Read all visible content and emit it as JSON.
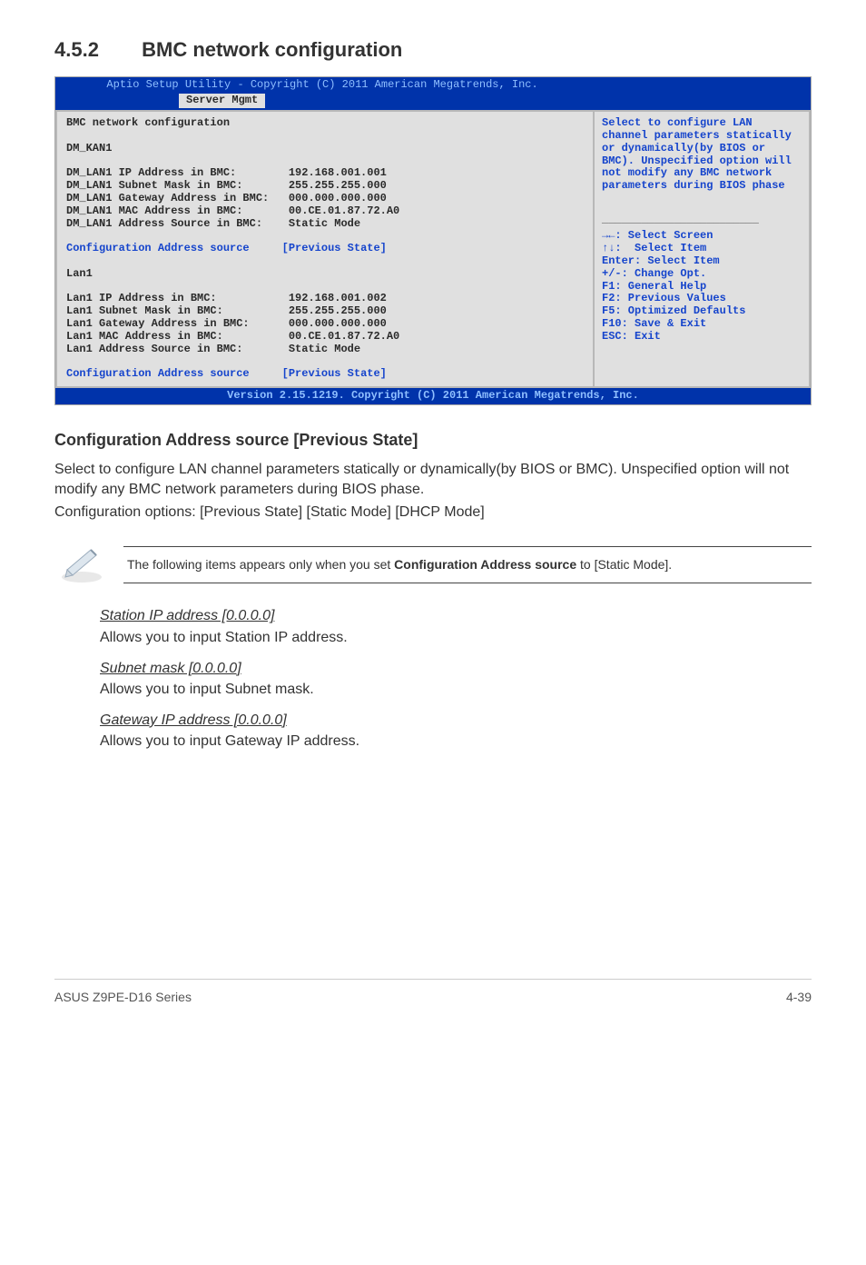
{
  "section": {
    "number": "4.5.2",
    "title": "BMC network configuration"
  },
  "bios": {
    "titlebar": "Aptio Setup Utility - Copyright (C) 2011 American Megatrends, Inc.",
    "active_tab": "Server Mgmt",
    "left_heading": "BMC network configuration",
    "left_group1": "DM_KAN1",
    "left_rows_g1": [
      [
        "DM_LAN1 IP Address in BMC:",
        "192.168.001.001"
      ],
      [
        "DM_LAN1 Subnet Mask in BMC:",
        "255.255.255.000"
      ],
      [
        "DM_LAN1 Gateway Address in BMC:",
        "000.000.000.000"
      ],
      [
        "DM_LAN1 MAC Address in BMC:",
        "00.CE.01.87.72.A0"
      ],
      [
        "DM_LAN1 Address Source in BMC:",
        "Static Mode"
      ]
    ],
    "left_cfg1_label": "Configuration Address source",
    "left_cfg1_val": "[Previous State]",
    "left_group2": "Lan1",
    "left_rows_g2": [
      [
        "Lan1 IP Address in BMC:",
        "192.168.001.002"
      ],
      [
        "Lan1 Subnet Mask in BMC:",
        "255.255.255.000"
      ],
      [
        "Lan1 Gateway Address in BMC:",
        "000.000.000.000"
      ],
      [
        "Lan1 MAC Address in BMC:",
        "00.CE.01.87.72.A0"
      ],
      [
        "Lan1 Address Source in BMC:",
        "Static Mode"
      ]
    ],
    "left_cfg2_label": "Configuration Address source",
    "left_cfg2_val": "[Previous State]",
    "help_text": "Select to configure LAN channel parameters statically or dynamically(by BIOS or BMC). Unspecified option will not modify any BMC network parameters during BIOS phase",
    "nav": [
      "→←: Select Screen",
      "↑↓:  Select Item",
      "Enter: Select Item",
      "+/-: Change Opt.",
      "F1: General Help",
      "F2: Previous Values",
      "F5: Optimized Defaults",
      "F10: Save & Exit",
      "ESC: Exit"
    ],
    "footer": "Version 2.15.1219. Copyright (C) 2011 American Megatrends, Inc."
  },
  "subhead": "Configuration Address source [Previous State]",
  "para1": "Select to configure LAN channel parameters statically or dynamically(by BIOS or BMC). Unspecified option will not modify any BMC network parameters during BIOS phase.",
  "cfgopts": "Configuration options: [Previous State] [Static Mode] [DHCP Mode]",
  "note_pre": "The following items appears only when you set ",
  "note_bold": "Configuration Address source",
  "note_post": " to [Static Mode].",
  "items": [
    {
      "u": "Station IP address [0.0.0.0]",
      "d": "Allows you to input Station IP address."
    },
    {
      "u": "Subnet mask [0.0.0.0]",
      "d": "Allows you to input Subnet mask."
    },
    {
      "u": "Gateway IP address [0.0.0.0]",
      "d": "Allows you to input Gateway IP address."
    }
  ],
  "footer_left": "ASUS Z9PE-D16 Series",
  "footer_right": "4-39"
}
